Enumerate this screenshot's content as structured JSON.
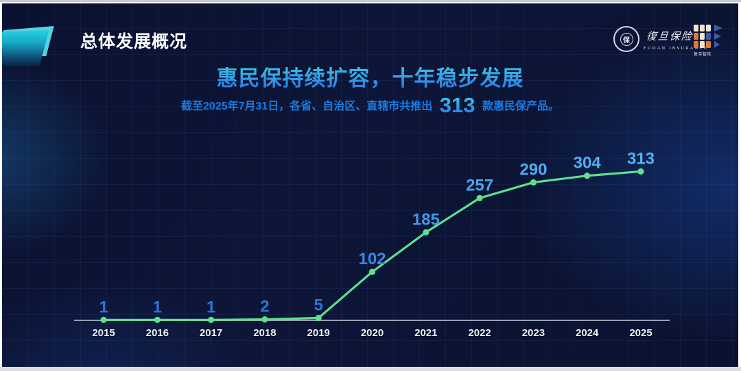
{
  "header": {
    "title": "总体发展概况"
  },
  "logos": {
    "fudan_seal_char": "保",
    "fudan_calligraphy": "復旦保险",
    "fudan_caption": "FUDAN INSURANCE",
    "thinktank_caption": "复旦智库"
  },
  "main": {
    "title": "惠民保持续扩容，十年稳步发展",
    "subtitle_prefix": "截至2025年7月31日，各省、自治区、直辖市共推出",
    "subtitle_number": "313",
    "subtitle_suffix": "款惠民保产品。"
  },
  "chart_data": {
    "type": "line",
    "categories": [
      "2015",
      "2016",
      "2017",
      "2018",
      "2019",
      "2020",
      "2021",
      "2022",
      "2023",
      "2024",
      "2025"
    ],
    "values": [
      1,
      1,
      1,
      2,
      5,
      102,
      185,
      257,
      290,
      304,
      313
    ],
    "title": "",
    "xlabel": "",
    "ylabel": "",
    "ylim": [
      0,
      330
    ],
    "grid": false,
    "legend": "none",
    "data_labels": [
      1,
      1,
      1,
      2,
      5,
      102,
      185,
      257,
      290,
      304,
      313
    ]
  },
  "colors": {
    "accent_teal": "#29cfe2",
    "line_green": "#5ee08d",
    "label_blue_light": "#54b2f2",
    "label_blue_deep": "#2a70d8",
    "axis_gray": "#98a0b4",
    "tick_white": "#eef2f8",
    "subtitle_blue": "#1b7be0",
    "title_gradient_start": "#3fd4e6",
    "title_gradient_end": "#2b7ce6",
    "slide_bg": "#0c1232",
    "logo_orange": "#e07a32",
    "logo_cream": "#f2e4cf",
    "logo_blue": "#3a5fa8"
  }
}
